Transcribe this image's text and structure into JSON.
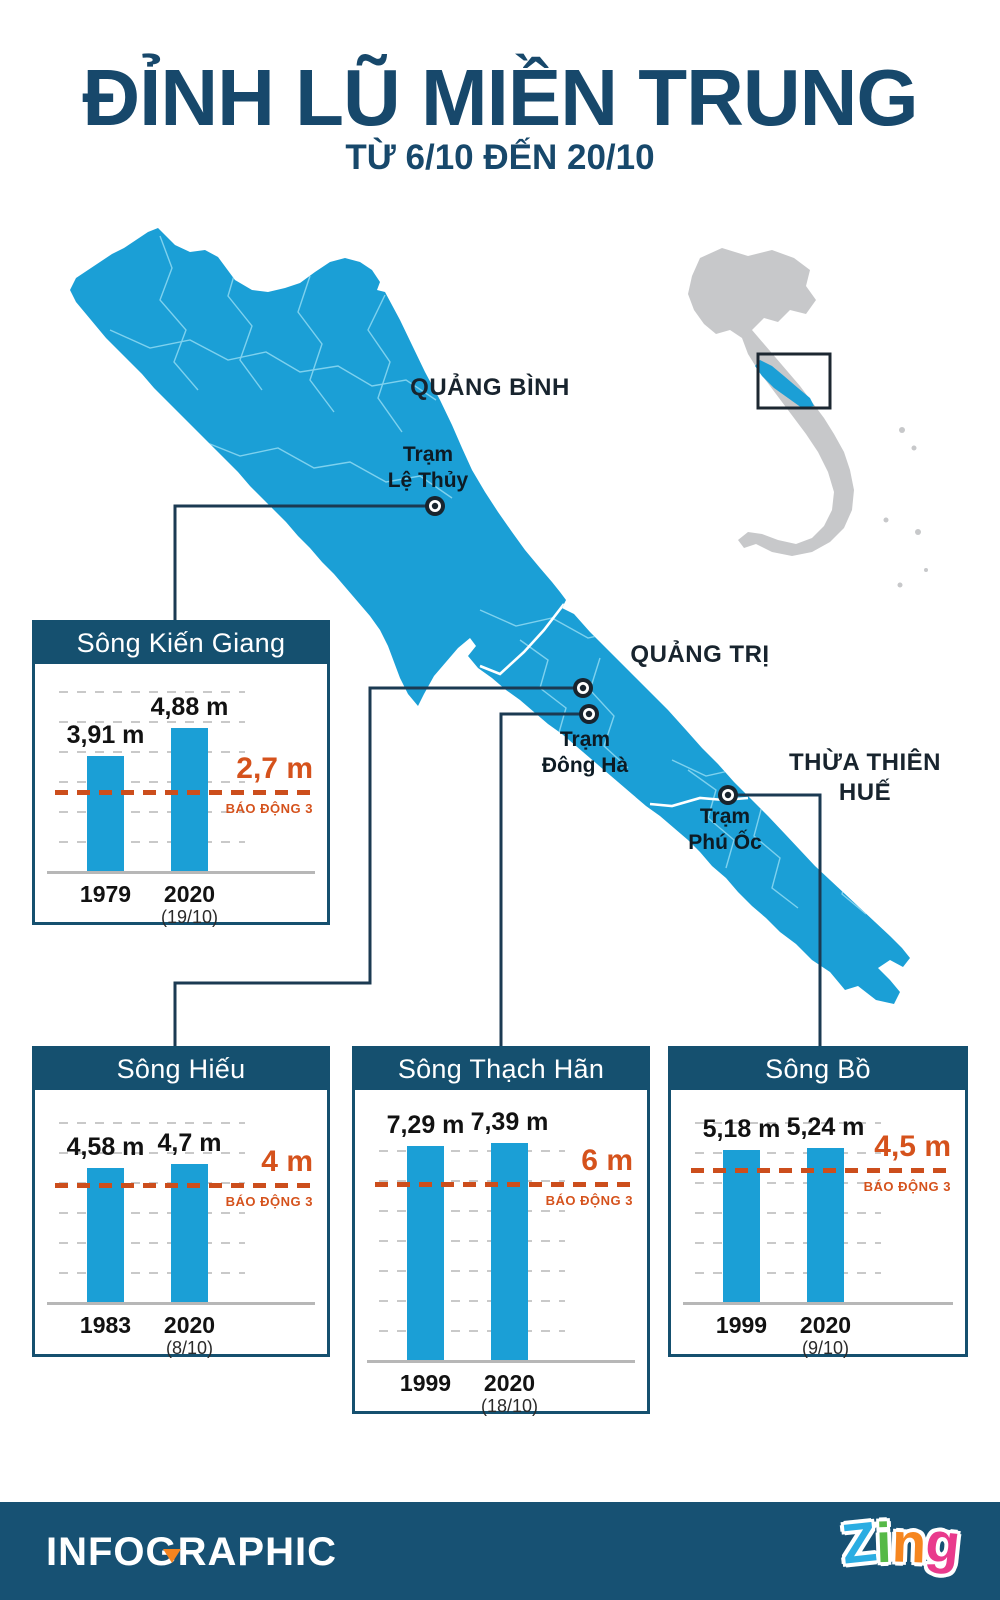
{
  "title": "ĐỈNH LŨ MIỀN TRUNG",
  "subtitle": "TỪ 6/10 ĐẾN 20/10",
  "map": {
    "province_labels": {
      "quang_binh": "QUẢNG BÌNH",
      "quang_tri": "QUẢNG TRỊ",
      "thua_thien_hue": "THỪA THIÊN\nHUẾ"
    },
    "station_labels": {
      "le_thuy": "Trạm\nLệ Thủy",
      "dong_ha": "Trạm\nĐông Hà",
      "phu_oc": "Trạm\nPhú Ốc"
    },
    "inset": "vietnam-locator-map"
  },
  "chart_data": [
    {
      "type": "bar",
      "title": "Sông Kiến Giang",
      "categories": [
        "1979",
        "2020 (19/10)"
      ],
      "values": [
        3.91,
        4.88
      ],
      "unit": "m",
      "value_labels": [
        "3,91 m",
        "4,88 m"
      ],
      "year_labels": [
        "1979",
        "2020"
      ],
      "date_labels": [
        "",
        "(19/10)"
      ],
      "threshold": {
        "value": 2.7,
        "label": "2,7 m",
        "sub": "BÁO ĐỘNG 3"
      },
      "ylim": [
        0,
        6
      ],
      "grid": true
    },
    {
      "type": "bar",
      "title": "Sông Hiếu",
      "categories": [
        "1983",
        "2020 (8/10)"
      ],
      "values": [
        4.58,
        4.7
      ],
      "unit": "m",
      "value_labels": [
        "4,58 m",
        "4,7 m"
      ],
      "year_labels": [
        "1983",
        "2020"
      ],
      "date_labels": [
        "",
        "(8/10)"
      ],
      "threshold": {
        "value": 4,
        "label": "4 m",
        "sub": "BÁO ĐỘNG 3"
      },
      "ylim": [
        0,
        6
      ],
      "grid": true
    },
    {
      "type": "bar",
      "title": "Sông Thạch Hãn",
      "categories": [
        "1999",
        "2020 (18/10)"
      ],
      "values": [
        7.29,
        7.39
      ],
      "unit": "m",
      "value_labels": [
        "7,29 m",
        "7,39 m"
      ],
      "year_labels": [
        "1999",
        "2020"
      ],
      "date_labels": [
        "",
        "(18/10)"
      ],
      "threshold": {
        "value": 6,
        "label": "6 m",
        "sub": "BÁO ĐỘNG 3"
      },
      "ylim": [
        0,
        8
      ],
      "grid": true
    },
    {
      "type": "bar",
      "title": "Sông Bồ",
      "categories": [
        "1999",
        "2020 (9/10)"
      ],
      "values": [
        5.18,
        5.24
      ],
      "unit": "m",
      "value_labels": [
        "5,18 m",
        "5,24 m"
      ],
      "year_labels": [
        "1999",
        "2020"
      ],
      "date_labels": [
        "",
        "(9/10)"
      ],
      "threshold": {
        "value": 4.5,
        "label": "4,5 m",
        "sub": "BÁO ĐỘNG 3"
      },
      "ylim": [
        0,
        6
      ],
      "grid": true
    }
  ],
  "footer": {
    "brand": "INFOGRAPHIC",
    "logo": {
      "l1": "Z",
      "l2": "i",
      "l3": "n",
      "l4": "g"
    }
  },
  "colors": {
    "title_navy": "#17486b",
    "box_navy": "#15506f",
    "map_blue": "#1b9fd6",
    "bar_blue": "#1b9fd6",
    "alert_orange": "#d5521c",
    "inset_gray": "#c7c8ca",
    "footer_teal": "#175173"
  }
}
